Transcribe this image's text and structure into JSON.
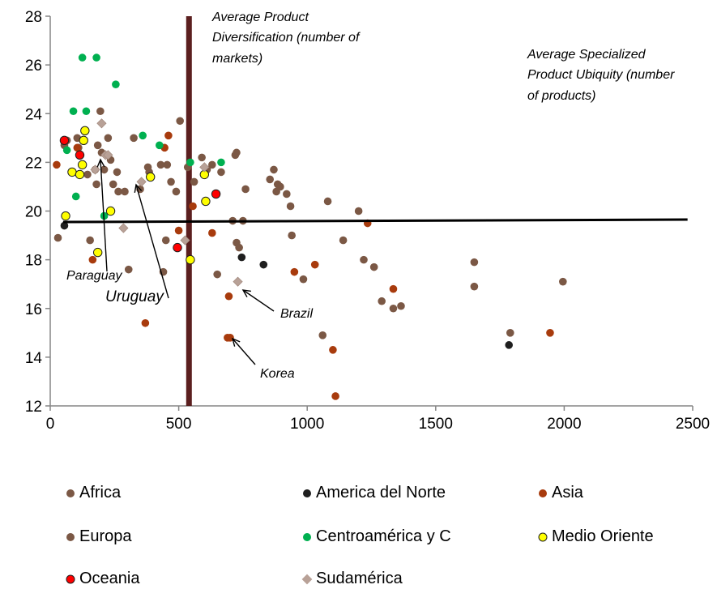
{
  "chart_data": {
    "type": "scatter",
    "xlim": [
      0,
      2500
    ],
    "ylim": [
      12,
      28
    ],
    "xticks": [
      "0",
      "500",
      "1000",
      "1500",
      "2000",
      "2500"
    ],
    "yticks": [
      "12",
      "14",
      "16",
      "18",
      "20",
      "22",
      "24",
      "26",
      "28"
    ],
    "grid": false,
    "legend_position": "bottom",
    "vertical_line": {
      "x": 540,
      "color": "#5b1f1f"
    },
    "horizontal_line": {
      "x": [
        50,
        2480
      ],
      "y": [
        19.55,
        19.65
      ],
      "color": "#000000"
    },
    "annotations": {
      "diversification": [
        "Average Product",
        "Diversification (number of",
        "markets)"
      ],
      "ubiquity": [
        "Average Specialized",
        "Product Ubiquity (number",
        "of products)"
      ],
      "paraguay": "Paraguay",
      "uruguay": "Uruguay",
      "brazil": "Brazil",
      "korea": "Korea"
    },
    "series": [
      {
        "name": "Africa",
        "color": "#7b5845",
        "marker": "circle",
        "points": [
          [
            30,
            18.9
          ],
          [
            55,
            22.7
          ],
          [
            65,
            22.9
          ],
          [
            105,
            23.0
          ],
          [
            110,
            22.6
          ],
          [
            145,
            21.5
          ],
          [
            155,
            18.8
          ],
          [
            175,
            21.7
          ],
          [
            180,
            21.1
          ],
          [
            185,
            22.7
          ],
          [
            195,
            24.1
          ],
          [
            200,
            22.4
          ],
          [
            210,
            21.7
          ],
          [
            225,
            23.0
          ],
          [
            235,
            22.1
          ],
          [
            245,
            21.1
          ],
          [
            260,
            21.6
          ],
          [
            265,
            20.8
          ],
          [
            290,
            20.8
          ],
          [
            305,
            17.6
          ],
          [
            325,
            23.0
          ],
          [
            350,
            20.9
          ],
          [
            380,
            21.8
          ],
          [
            385,
            21.6
          ],
          [
            430,
            21.9
          ],
          [
            440,
            17.5
          ],
          [
            455,
            21.9
          ],
          [
            470,
            21.2
          ],
          [
            490,
            20.8
          ],
          [
            505,
            23.7
          ],
          [
            535,
            21.8
          ],
          [
            560,
            21.2
          ],
          [
            590,
            22.2
          ],
          [
            610,
            21.7
          ],
          [
            630,
            21.9
          ],
          [
            665,
            21.6
          ],
          [
            710,
            19.6
          ],
          [
            720,
            22.3
          ],
          [
            725,
            18.7
          ],
          [
            735,
            18.5
          ],
          [
            750,
            19.6
          ],
          [
            760,
            20.9
          ],
          [
            855,
            21.3
          ],
          [
            870,
            21.7
          ],
          [
            880,
            20.8
          ],
          [
            885,
            21.1
          ],
          [
            895,
            21.0
          ],
          [
            920,
            20.7
          ],
          [
            935,
            20.2
          ],
          [
            985,
            17.2
          ],
          [
            1060,
            14.9
          ],
          [
            1080,
            20.4
          ],
          [
            1140,
            18.8
          ],
          [
            1200,
            20.0
          ],
          [
            1220,
            18.0
          ],
          [
            1260,
            17.7
          ]
        ]
      },
      {
        "name": "America del Norte",
        "color": "#1f1f1f",
        "marker": "circle",
        "points": [
          [
            55,
            19.4
          ],
          [
            745,
            18.1
          ],
          [
            830,
            17.8
          ],
          [
            1785,
            14.5
          ]
        ]
      },
      {
        "name": "Asia",
        "color": "#a83b0d",
        "marker": "circle",
        "points": [
          [
            25,
            21.9
          ],
          [
            105,
            22.6
          ],
          [
            165,
            18.0
          ],
          [
            370,
            15.4
          ],
          [
            445,
            22.6
          ],
          [
            460,
            23.1
          ],
          [
            500,
            19.2
          ],
          [
            555,
            20.2
          ],
          [
            630,
            19.1
          ],
          [
            695,
            16.5
          ],
          [
            690,
            14.8
          ],
          [
            700,
            14.8
          ],
          [
            950,
            17.5
          ],
          [
            1030,
            17.8
          ],
          [
            1100,
            14.3
          ],
          [
            1110,
            12.4
          ],
          [
            1235,
            19.5
          ],
          [
            1335,
            16.8
          ],
          [
            1945,
            15.0
          ]
        ]
      },
      {
        "name": "Europa",
        "color": "#7b5845",
        "marker": "circle",
        "points": [
          [
            450,
            18.8
          ],
          [
            650,
            17.4
          ],
          [
            725,
            22.4
          ],
          [
            940,
            19.0
          ],
          [
            1290,
            16.3
          ],
          [
            1335,
            16.0
          ],
          [
            1365,
            16.1
          ],
          [
            1650,
            17.9
          ],
          [
            1650,
            16.9
          ],
          [
            1790,
            15.0
          ],
          [
            1995,
            17.1
          ]
        ]
      },
      {
        "name": "Centroamérica y C",
        "color": "#00b050",
        "marker": "circle",
        "points": [
          [
            65,
            22.5
          ],
          [
            90,
            24.1
          ],
          [
            100,
            20.6
          ],
          [
            125,
            26.3
          ],
          [
            140,
            24.1
          ],
          [
            180,
            26.3
          ],
          [
            210,
            19.8
          ],
          [
            255,
            25.2
          ],
          [
            360,
            23.1
          ],
          [
            425,
            22.7
          ],
          [
            545,
            22.0
          ],
          [
            665,
            22.0
          ]
        ]
      },
      {
        "name": "Medio Oriente",
        "color": "#ffff00",
        "marker": "circle-outline",
        "points": [
          [
            60,
            19.8
          ],
          [
            85,
            21.6
          ],
          [
            115,
            21.5
          ],
          [
            125,
            21.9
          ],
          [
            130,
            22.9
          ],
          [
            135,
            23.3
          ],
          [
            185,
            18.3
          ],
          [
            235,
            20.0
          ],
          [
            390,
            21.4
          ],
          [
            545,
            18.0
          ],
          [
            600,
            21.5
          ],
          [
            605,
            20.4
          ]
        ]
      },
      {
        "name": "Oceania",
        "color": "#ff0000",
        "marker": "circle-outline",
        "points": [
          [
            55,
            22.9
          ],
          [
            115,
            22.3
          ],
          [
            495,
            18.5
          ],
          [
            645,
            20.7
          ]
        ]
      },
      {
        "name": "Sudamérica",
        "color": "#b8a197",
        "marker": "diamond",
        "points": [
          [
            175,
            21.7
          ],
          [
            200,
            23.6
          ],
          [
            215,
            22.3
          ],
          [
            225,
            22.3
          ],
          [
            285,
            19.3
          ],
          [
            355,
            21.2
          ],
          [
            525,
            18.8
          ],
          [
            600,
            21.8
          ],
          [
            730,
            17.1
          ]
        ]
      }
    ],
    "legend": [
      "Africa",
      "America del Norte",
      "Asia",
      "Europa",
      "Centroamérica y C",
      "Medio Oriente",
      "Oceania",
      "Sudamérica"
    ]
  }
}
